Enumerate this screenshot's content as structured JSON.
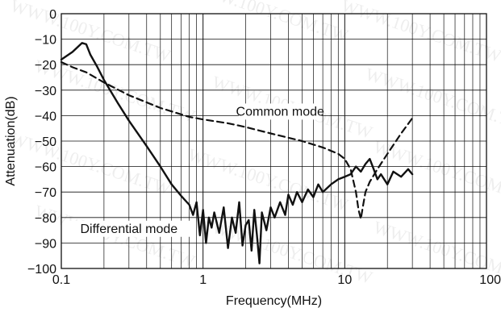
{
  "chart_data": {
    "type": "line",
    "xscale": "log",
    "xlim": [
      0.1,
      100
    ],
    "ylim": [
      -100,
      0
    ],
    "grid": true,
    "xlabel": "Frequency(MHz)",
    "ylabel": "Attenuation(dB)",
    "x_ticks": [
      0.1,
      1,
      10,
      100
    ],
    "x_tick_labels": [
      "0.1",
      "1",
      "10",
      "100"
    ],
    "y_ticks": [
      0,
      -10,
      -20,
      -30,
      -40,
      -50,
      -60,
      -70,
      -80,
      -90,
      -100
    ],
    "y_tick_labels": [
      "0",
      "−10",
      "−20",
      "−30",
      "−40",
      "−50",
      "−60",
      "−70",
      "−80",
      "−90",
      "−100"
    ],
    "annotations": [
      {
        "text": "Common mode",
        "x": 3.5,
        "y": -40
      },
      {
        "text": "Differential mode",
        "x": 0.3,
        "y": -86
      }
    ],
    "watermark_text": "WWW.100Y.COM.TW",
    "series": [
      {
        "name": "Common mode",
        "style": "dashed",
        "color": "#111111",
        "x": [
          0.1,
          0.12,
          0.15,
          0.2,
          0.3,
          0.5,
          0.8,
          1,
          1.5,
          2,
          3,
          5,
          7,
          9,
          10,
          11,
          12,
          12.5,
          13,
          13.5,
          14,
          15,
          17,
          20,
          25,
          30
        ],
        "y": [
          -19,
          -21,
          -23,
          -27,
          -32,
          -37,
          -40.5,
          -41.5,
          -43,
          -44.5,
          -47,
          -50,
          -52.5,
          -55,
          -57,
          -61,
          -70,
          -77,
          -80.5,
          -75,
          -70,
          -66,
          -61,
          -55,
          -47,
          -41
        ]
      },
      {
        "name": "Differential mode",
        "style": "solid",
        "color": "#111111",
        "x": [
          0.1,
          0.12,
          0.14,
          0.15,
          0.16,
          0.18,
          0.2,
          0.25,
          0.3,
          0.4,
          0.5,
          0.6,
          0.7,
          0.8,
          0.85,
          0.9,
          0.95,
          1,
          1.05,
          1.1,
          1.15,
          1.2,
          1.3,
          1.4,
          1.5,
          1.6,
          1.7,
          1.8,
          1.9,
          2,
          2.1,
          2.2,
          2.3,
          2.4,
          2.5,
          2.6,
          2.8,
          3,
          3.2,
          3.5,
          3.8,
          4,
          4.3,
          4.6,
          5,
          5.5,
          6,
          6.5,
          7,
          8,
          9,
          10,
          11,
          12,
          13,
          14,
          15,
          16,
          17,
          18,
          20,
          22,
          25,
          28,
          30
        ],
        "y": [
          -18,
          -15,
          -11.5,
          -12,
          -16,
          -21,
          -26,
          -35,
          -42,
          -52,
          -60,
          -67,
          -71.5,
          -75,
          -79,
          -74,
          -87,
          -77,
          -90,
          -80,
          -84,
          -78,
          -86,
          -76,
          -92,
          -80,
          -86,
          -74,
          -91,
          -83,
          -81,
          -93,
          -77,
          -87,
          -98,
          -78,
          -85,
          -76,
          -80,
          -74,
          -79,
          -71,
          -75,
          -70,
          -74,
          -69,
          -72,
          -67,
          -70,
          -67,
          -65,
          -64,
          -63,
          -60,
          -62,
          -59,
          -57,
          -61,
          -65,
          -63,
          -67,
          -62,
          -64,
          -61,
          -63
        ]
      }
    ]
  }
}
